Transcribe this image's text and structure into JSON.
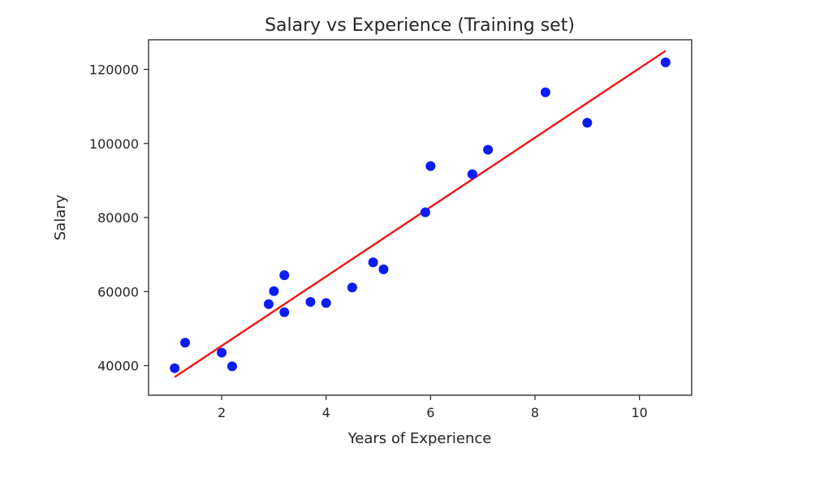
{
  "chart_data": {
    "type": "scatter",
    "title": "Salary vs Experience (Training set)",
    "xlabel": "Years of Experience",
    "ylabel": "Salary",
    "xlim": [
      0.6,
      11.0
    ],
    "ylim": [
      32000,
      128000
    ],
    "xticks": [
      2,
      4,
      6,
      8,
      10
    ],
    "yticks": [
      40000,
      60000,
      80000,
      100000,
      120000
    ],
    "grid": false,
    "legend": "none",
    "points": [
      {
        "x": 1.1,
        "y": 39300
      },
      {
        "x": 1.3,
        "y": 46200
      },
      {
        "x": 2.0,
        "y": 43500
      },
      {
        "x": 2.2,
        "y": 39800
      },
      {
        "x": 2.9,
        "y": 56600
      },
      {
        "x": 3.0,
        "y": 60100
      },
      {
        "x": 3.2,
        "y": 54400
      },
      {
        "x": 3.2,
        "y": 64400
      },
      {
        "x": 3.7,
        "y": 57200
      },
      {
        "x": 4.0,
        "y": 56900
      },
      {
        "x": 4.5,
        "y": 61100
      },
      {
        "x": 4.9,
        "y": 67900
      },
      {
        "x": 5.1,
        "y": 66000
      },
      {
        "x": 5.9,
        "y": 81400
      },
      {
        "x": 6.0,
        "y": 93900
      },
      {
        "x": 6.8,
        "y": 91700
      },
      {
        "x": 7.1,
        "y": 98300
      },
      {
        "x": 8.2,
        "y": 113800
      },
      {
        "x": 9.0,
        "y": 105600
      },
      {
        "x": 10.5,
        "y": 121900
      }
    ],
    "regression_line": {
      "x": [
        1.1,
        10.5
      ],
      "y": [
        36900,
        125000
      ]
    },
    "colors": {
      "points": "#0b1cf5",
      "line": "#ef1616",
      "axes": "#262626",
      "background": "#ffffff"
    }
  }
}
